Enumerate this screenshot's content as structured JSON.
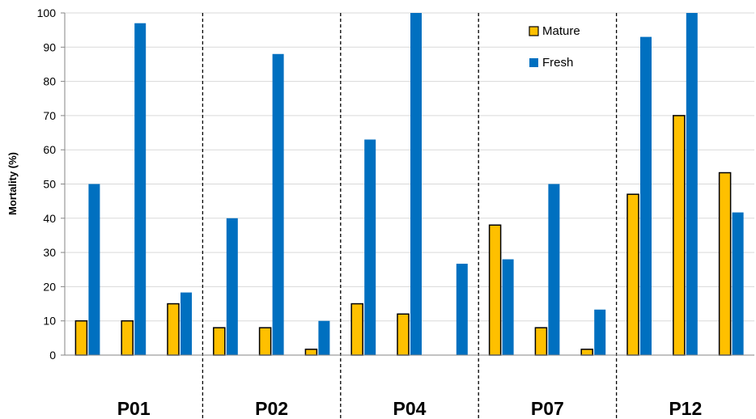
{
  "chart_data": {
    "type": "bar",
    "ylabel": "Mortality (%)",
    "ylim": [
      0,
      100
    ],
    "yticks": [
      0,
      10,
      20,
      30,
      40,
      50,
      60,
      70,
      80,
      90,
      100
    ],
    "legend_position": "top-right",
    "groups": [
      "P01",
      "P02",
      "P04",
      "P07",
      "P12"
    ],
    "series": [
      {
        "name": "Mature",
        "color": "#FFC000",
        "values": [
          [
            10,
            10,
            15
          ],
          [
            8,
            8,
            1.7
          ],
          [
            15,
            12,
            null
          ],
          [
            38,
            8,
            1.7
          ],
          [
            47,
            70,
            53.3
          ]
        ]
      },
      {
        "name": "Fresh",
        "color": "#0070C0",
        "values": [
          [
            50,
            97,
            18.3
          ],
          [
            40,
            88,
            10
          ],
          [
            63,
            100,
            26.7
          ],
          [
            28,
            50,
            13.3
          ],
          [
            93,
            100,
            41.7
          ]
        ]
      }
    ]
  }
}
